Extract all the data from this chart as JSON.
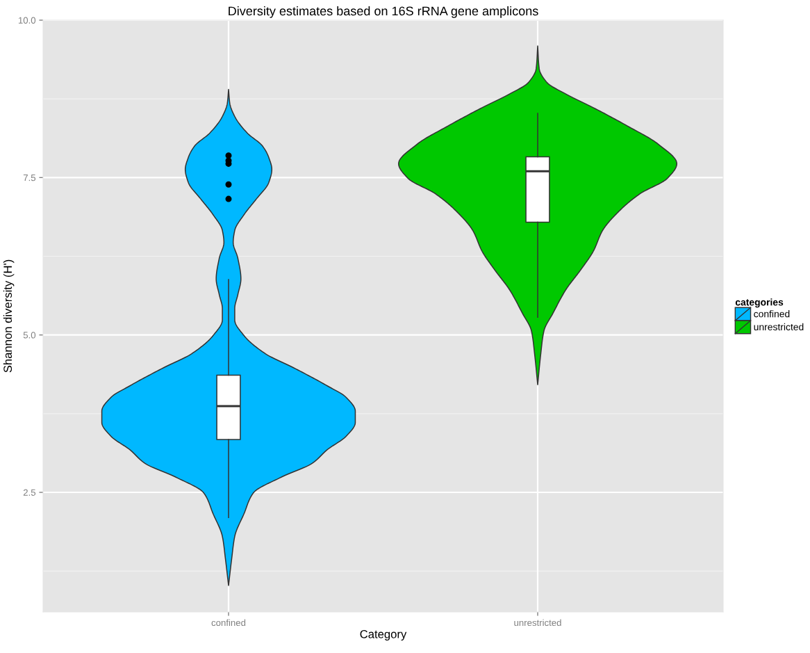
{
  "chart_data": {
    "type": "box",
    "title": "Diversity estimates based on 16S rRNA gene amplicons",
    "xlabel": "Category",
    "ylabel": "Shannon diversity (H')",
    "legend_title": "categories",
    "categories": [
      "confined",
      "unrestricted"
    ],
    "boxes": [
      {
        "low": 2.1,
        "q1": 3.34,
        "median": 3.87,
        "q3": 4.36,
        "high": 5.88,
        "outliers": [
          7.16,
          7.39,
          7.72,
          7.77,
          7.85
        ]
      },
      {
        "low": 5.28,
        "q1": 6.79,
        "median": 7.6,
        "q3": 7.83,
        "high": 8.52
      }
    ],
    "series": [
      {
        "name": "confined",
        "color": "#00b8ff",
        "type": "other",
        "values": [
          null,
          null
        ]
      },
      {
        "name": "unrestricted",
        "color": "#00c800",
        "type": "other",
        "values": [
          null,
          null
        ]
      }
    ],
    "ylim": [
      0.6,
      10.0
    ],
    "yticks": [
      2.5,
      {
        "value": 5,
        "label": "5.0"
      },
      7.5,
      {
        "value": 10,
        "label": "10.0"
      }
    ],
    "grid": true,
    "legend": "right"
  }
}
